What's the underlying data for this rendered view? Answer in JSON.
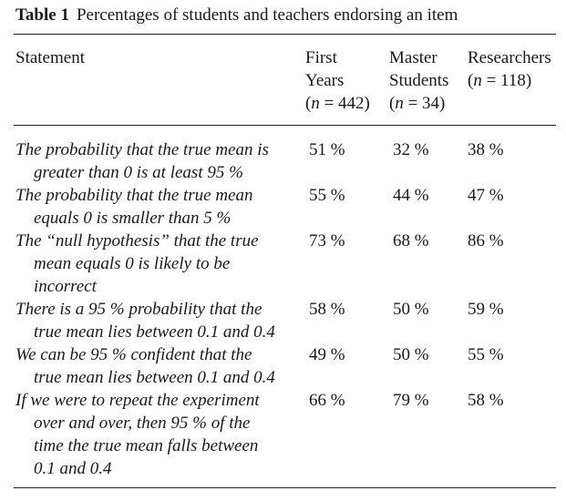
{
  "table": {
    "label": "Table 1",
    "title": "Percentages of students and teachers endorsing an item",
    "headers": {
      "statement": "Statement",
      "first_years": {
        "line1": "First",
        "line2": "Years",
        "n_open": "(",
        "n_var": "n",
        "n_rest": " = 442)"
      },
      "master_students": {
        "line1": "Master",
        "line2": "Students",
        "n_open": "(",
        "n_var": "n",
        "n_rest": " = 34)"
      },
      "researchers": {
        "line1": "Researchers",
        "n_open": "(",
        "n_var": "n",
        "n_rest": " = 118)"
      }
    },
    "rows": [
      {
        "lines": [
          "The probability that the true mean is",
          "greater than 0 is at least 95 %"
        ],
        "first_years": "51 %",
        "master_students": "32 %",
        "researchers": "38 %"
      },
      {
        "lines": [
          "The probability that the true mean",
          "equals 0 is smaller than 5 %"
        ],
        "first_years": "55 %",
        "master_students": "44 %",
        "researchers": "47 %"
      },
      {
        "lines": [
          "The “null hypothesis” that the true",
          "mean equals 0 is likely to be",
          "incorrect"
        ],
        "first_years": "73 %",
        "master_students": "68 %",
        "researchers": "86 %"
      },
      {
        "lines": [
          "There is a 95 % probability that the",
          "true mean lies between 0.1 and 0.4"
        ],
        "first_years": "58 %",
        "master_students": "50 %",
        "researchers": "59 %"
      },
      {
        "lines": [
          "We can be 95 % confident that the",
          "true mean lies between 0.1 and 0.4"
        ],
        "first_years": "49 %",
        "master_students": "50 %",
        "researchers": "55 %"
      },
      {
        "lines": [
          "If we were to repeat the experiment",
          "over and over, then 95 % of the",
          "time the true mean falls between",
          "0.1 and 0.4"
        ],
        "first_years": "66 %",
        "master_students": "79 %",
        "researchers": "58 %"
      }
    ]
  }
}
